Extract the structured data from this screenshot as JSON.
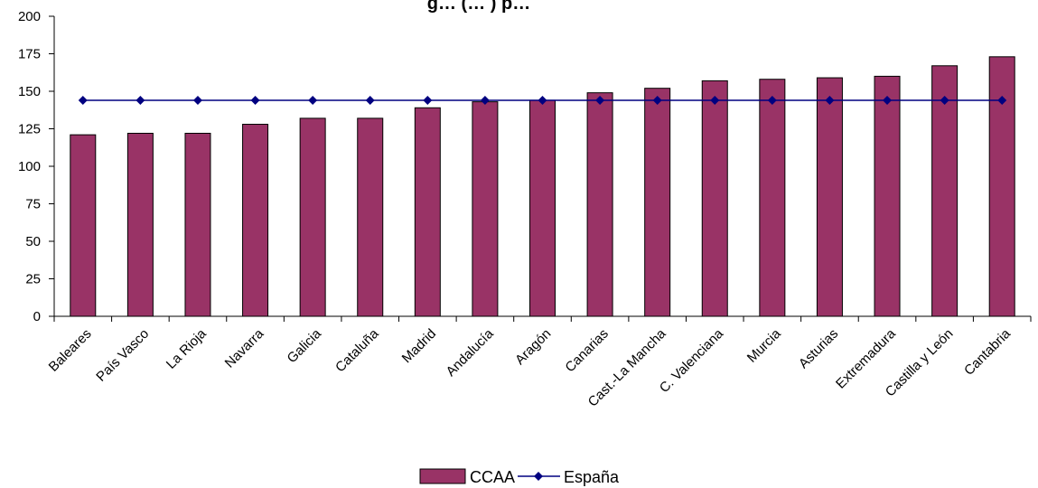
{
  "chart_data": {
    "type": "bar",
    "title": "",
    "title_visible_fragment": "g… (… ) p…",
    "xlabel": "",
    "ylabel": "",
    "ylim": [
      0,
      200
    ],
    "yticks": [
      0,
      25,
      50,
      75,
      100,
      125,
      150,
      175,
      200
    ],
    "grid": false,
    "legend_position": "bottom",
    "categories": [
      "Baleares",
      "País Vasco",
      "La Rioja",
      "Navarra",
      "Galicia",
      "Cataluña",
      "Madrid",
      "Andalucía",
      "Aragón",
      "Canarias",
      "Cast.-La Mancha",
      "C. Valenciana",
      "Murcia",
      "Asturias",
      "Extremadura",
      "Castilla y León",
      "Cantabria"
    ],
    "series": [
      {
        "name": "CCAA",
        "type": "bar",
        "color": "#993366",
        "values": [
          121,
          122,
          122,
          128,
          132,
          132,
          139,
          143,
          144,
          149,
          152,
          157,
          158,
          159,
          160,
          167,
          173
        ]
      },
      {
        "name": "España",
        "type": "line",
        "marker": "diamond",
        "color": "#000080",
        "values": [
          144,
          144,
          144,
          144,
          144,
          144,
          144,
          144,
          144,
          144,
          144,
          144,
          144,
          144,
          144,
          144,
          144
        ]
      }
    ]
  }
}
